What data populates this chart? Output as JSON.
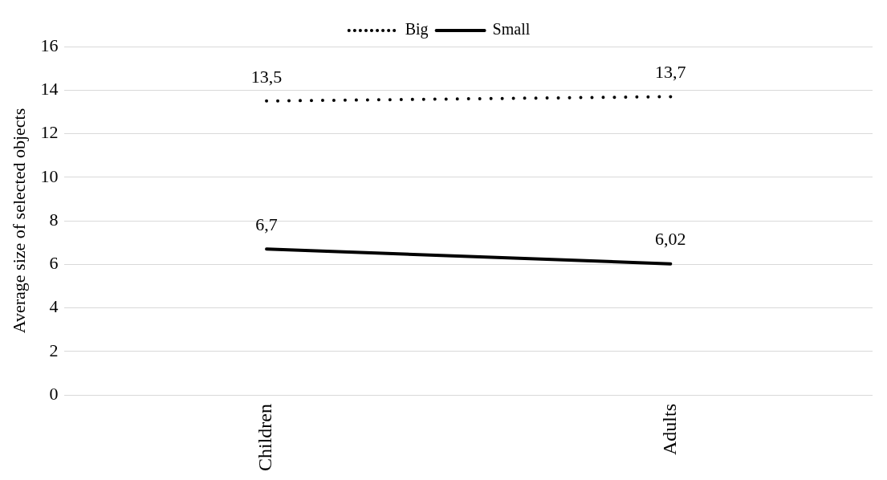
{
  "chart_data": {
    "type": "line",
    "ylabel": "Average size of selected objects",
    "categories": [
      "Children",
      "Adults"
    ],
    "series": [
      {
        "name": "Big",
        "color": "#000000",
        "values": [
          13.5,
          13.7
        ],
        "line_style": "dotted",
        "value_labels": [
          "13,5",
          "13,7"
        ]
      },
      {
        "name": "Small",
        "color": "#000000",
        "values": [
          6.7,
          6.02
        ],
        "line_style": "solid",
        "value_labels": [
          "6,7",
          "6,02"
        ]
      }
    ],
    "ylim": [
      0,
      16
    ],
    "yticks": [
      0,
      2,
      4,
      6,
      8,
      10,
      12,
      14,
      16
    ],
    "grid": "y",
    "legend": "top",
    "marker": "none"
  }
}
